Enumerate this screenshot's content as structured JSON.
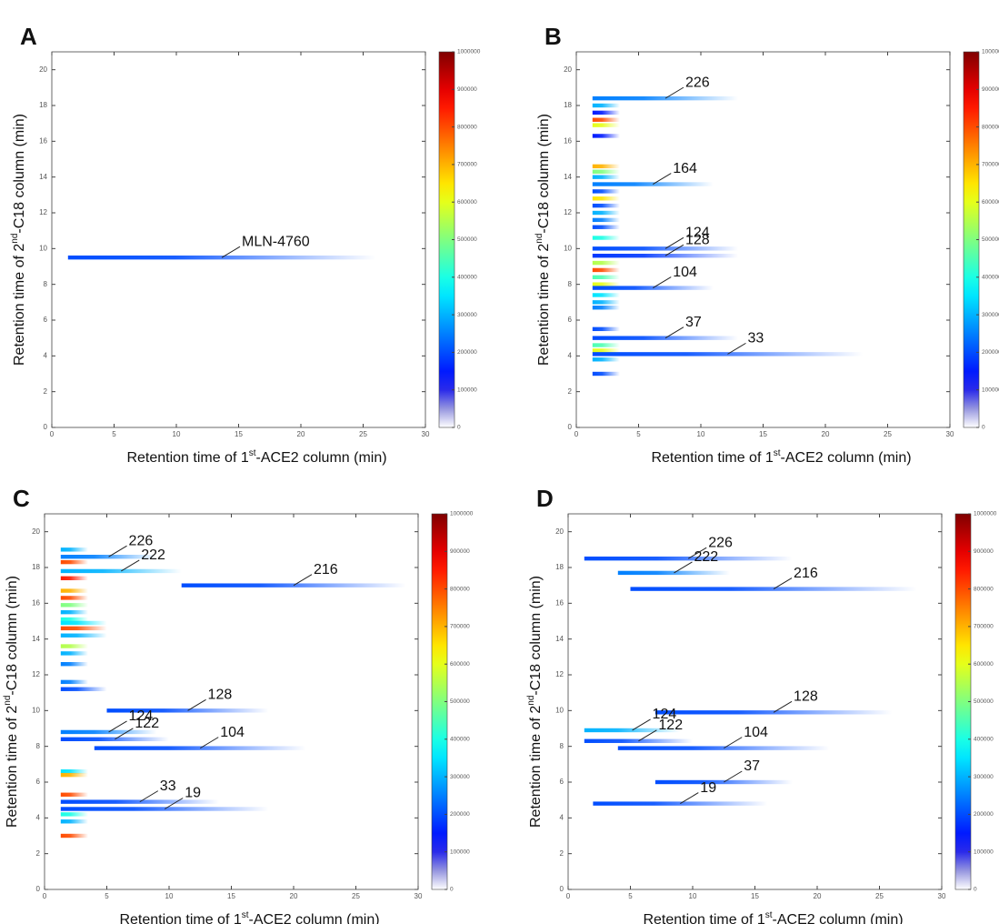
{
  "chart_data": [
    {
      "type": "streak",
      "title": "A",
      "xlabel": [
        "Retention time of 1",
        "st",
        "-ACE2 column (min)"
      ],
      "ylabel": [
        "Retention time of 2",
        "nd",
        "-C18  column (min)"
      ],
      "xlim": [
        0,
        30
      ],
      "ylim": [
        0,
        21
      ],
      "xticks": [
        0,
        5,
        10,
        15,
        20,
        25,
        30
      ],
      "yticks": [
        0,
        2,
        4,
        6,
        8,
        10,
        12,
        14,
        16,
        18,
        20
      ],
      "clim": [
        0,
        1000000
      ],
      "cticks": [
        0,
        100000,
        200000,
        300000,
        400000,
        500000,
        600000,
        700000,
        800000,
        900000,
        1000000
      ],
      "y": [
        9.5
      ],
      "x0": [
        1.3
      ],
      "x1": [
        26
      ],
      "intensity": [
        200000
      ],
      "labels": [
        "MLN-4760"
      ]
    },
    {
      "type": "streak",
      "title": "B",
      "xlabel": [
        "Retention time of 1",
        "st",
        "-ACE2 column (min)"
      ],
      "ylabel": [
        "Retention time of 2",
        "nd",
        "-C18  column (min)"
      ],
      "xlim": [
        0,
        30
      ],
      "ylim": [
        0,
        21
      ],
      "xticks": [
        0,
        5,
        10,
        15,
        20,
        25,
        30
      ],
      "yticks": [
        0,
        2,
        4,
        6,
        8,
        10,
        12,
        14,
        16,
        18,
        20
      ],
      "clim": [
        0,
        1000000
      ],
      "cticks": [
        0,
        100000,
        200000,
        300000,
        400000,
        500000,
        600000,
        700000,
        800000,
        900000,
        1000000
      ],
      "y": [
        18.4,
        18.0,
        17.6,
        17.2,
        16.9,
        16.3,
        14.6,
        14.3,
        14.0,
        13.6,
        13.2,
        12.8,
        12.4,
        12.0,
        11.6,
        11.2,
        10.6,
        10.0,
        9.6,
        9.2,
        8.8,
        8.4,
        8.0,
        7.8,
        7.4,
        7.0,
        6.7,
        5.5,
        5.0,
        4.6,
        4.3,
        4.1,
        3.8,
        3.0
      ],
      "x0": [
        1.3,
        1.3,
        1.3,
        1.3,
        1.3,
        1.3,
        1.3,
        1.3,
        1.3,
        1.3,
        1.3,
        1.3,
        1.3,
        1.3,
        1.3,
        1.3,
        1.3,
        1.3,
        1.3,
        1.3,
        1.3,
        1.3,
        1.3,
        1.3,
        1.3,
        1.3,
        1.3,
        1.3,
        1.3,
        1.3,
        1.3,
        1.3,
        1.3,
        1.3
      ],
      "x1": [
        13,
        3.5,
        3.5,
        3.5,
        3.5,
        3.5,
        3.5,
        3.5,
        3.5,
        11,
        3.5,
        3.5,
        3.5,
        3.5,
        3.5,
        3.5,
        3.5,
        13,
        13,
        3.5,
        3.5,
        3.5,
        3.5,
        11,
        3.5,
        3.5,
        3.5,
        3.5,
        13,
        3.5,
        3.5,
        23,
        3.5,
        3.5
      ],
      "intensity": [
        250000,
        300000,
        150000,
        800000,
        600000,
        150000,
        700000,
        500000,
        300000,
        250000,
        200000,
        650000,
        200000,
        300000,
        250000,
        200000,
        400000,
        200000,
        180000,
        550000,
        800000,
        450000,
        600000,
        200000,
        350000,
        300000,
        250000,
        200000,
        200000,
        450000,
        600000,
        200000,
        300000,
        200000
      ],
      "labels": [
        "226",
        null,
        null,
        null,
        null,
        null,
        null,
        null,
        null,
        "164",
        null,
        null,
        null,
        null,
        null,
        null,
        null,
        "124",
        "128",
        null,
        null,
        null,
        null,
        "104",
        null,
        null,
        null,
        null,
        "37",
        null,
        null,
        "33",
        null,
        null
      ]
    },
    {
      "type": "streak",
      "title": "C",
      "xlabel": [
        "Retention time of 1",
        "st",
        "-ACE2 column (min)"
      ],
      "ylabel": [
        "Retention time of 2",
        "nd",
        "-C18  column (min)"
      ],
      "xlim": [
        0,
        30
      ],
      "ylim": [
        0,
        21
      ],
      "xticks": [
        0,
        5,
        10,
        15,
        20,
        25,
        30
      ],
      "yticks": [
        0,
        2,
        4,
        6,
        8,
        10,
        12,
        14,
        16,
        18,
        20
      ],
      "clim": [
        0,
        1000000
      ],
      "cticks": [
        0,
        100000,
        200000,
        300000,
        400000,
        500000,
        600000,
        700000,
        800000,
        900000,
        1000000
      ],
      "y": [
        19.0,
        18.6,
        18.3,
        17.8,
        17.4,
        17.0,
        16.7,
        16.3,
        15.9,
        15.5,
        15.1,
        14.9,
        14.6,
        14.2,
        13.6,
        13.2,
        12.6,
        11.6,
        11.2,
        10.0,
        8.8,
        8.4,
        7.9,
        6.6,
        6.4,
        5.3,
        4.9,
        4.5,
        4.2,
        3.8,
        3.0
      ],
      "x0": [
        1.3,
        1.3,
        1.3,
        1.3,
        1.3,
        11,
        1.3,
        1.3,
        1.3,
        1.3,
        1.3,
        1.3,
        1.3,
        1.3,
        1.3,
        1.3,
        1.3,
        1.3,
        1.3,
        5,
        1.3,
        1.3,
        4,
        1.3,
        1.3,
        1.3,
        1.3,
        1.3,
        1.3,
        1.3,
        1.3
      ],
      "x1": [
        3.5,
        9,
        3.5,
        11,
        3.5,
        29,
        3.5,
        3.5,
        3.5,
        3.5,
        3.5,
        5,
        5,
        5,
        3.5,
        3.5,
        3.5,
        3.5,
        5,
        18,
        9,
        10,
        21,
        3.5,
        3.5,
        3.5,
        14,
        18,
        3.5,
        3.5,
        3.5
      ],
      "intensity": [
        300000,
        250000,
        800000,
        300000,
        850000,
        200000,
        700000,
        800000,
        500000,
        300000,
        400000,
        350000,
        800000,
        300000,
        550000,
        300000,
        250000,
        250000,
        200000,
        200000,
        250000,
        200000,
        200000,
        350000,
        700000,
        800000,
        200000,
        200000,
        400000,
        300000,
        800000
      ],
      "labels": [
        null,
        "226",
        null,
        "222",
        null,
        "216",
        null,
        null,
        null,
        null,
        null,
        null,
        null,
        null,
        null,
        null,
        null,
        null,
        null,
        "128",
        "124",
        "122",
        "104",
        null,
        null,
        null,
        "33",
        "19",
        null,
        null,
        null
      ]
    },
    {
      "type": "streak",
      "title": "D",
      "xlabel": [
        "Retention time of 1",
        "st",
        "-ACE2 column (min)"
      ],
      "ylabel": [
        "Retention time of 2",
        "nd",
        "-C18  column (min)"
      ],
      "xlim": [
        0,
        30
      ],
      "ylim": [
        0,
        21
      ],
      "xticks": [
        0,
        5,
        10,
        15,
        20,
        25,
        30
      ],
      "yticks": [
        0,
        2,
        4,
        6,
        8,
        10,
        12,
        14,
        16,
        18,
        20
      ],
      "clim": [
        0,
        1000000
      ],
      "cticks": [
        0,
        100000,
        200000,
        300000,
        400000,
        500000,
        600000,
        700000,
        800000,
        900000,
        1000000
      ],
      "y": [
        18.5,
        17.7,
        16.8,
        9.9,
        8.9,
        8.3,
        7.9,
        6.0,
        4.8
      ],
      "x0": [
        1.3,
        4,
        5,
        7,
        1.3,
        1.3,
        4,
        7,
        2
      ],
      "x1": [
        18,
        13,
        28,
        26,
        9,
        10,
        21,
        18,
        16
      ],
      "intensity": [
        200000,
        250000,
        200000,
        200000,
        300000,
        200000,
        200000,
        200000,
        200000
      ],
      "labels": [
        "226",
        "222",
        "216",
        "128",
        "124",
        "122",
        "104",
        "37",
        "19"
      ]
    }
  ]
}
